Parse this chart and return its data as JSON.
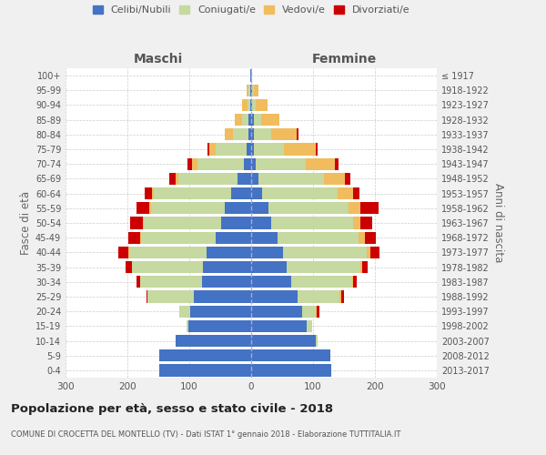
{
  "age_groups": [
    "0-4",
    "5-9",
    "10-14",
    "15-19",
    "20-24",
    "25-29",
    "30-34",
    "35-39",
    "40-44",
    "45-49",
    "50-54",
    "55-59",
    "60-64",
    "65-69",
    "70-74",
    "75-79",
    "80-84",
    "85-89",
    "90-94",
    "95-99",
    "100+"
  ],
  "birth_years": [
    "2013-2017",
    "2008-2012",
    "2003-2007",
    "1998-2002",
    "1993-1997",
    "1988-1992",
    "1983-1987",
    "1978-1982",
    "1973-1977",
    "1968-1972",
    "1963-1967",
    "1958-1962",
    "1953-1957",
    "1948-1952",
    "1943-1947",
    "1938-1942",
    "1933-1937",
    "1928-1932",
    "1923-1927",
    "1918-1922",
    "≤ 1917"
  ],
  "male_celibi": [
    148,
    148,
    122,
    102,
    98,
    92,
    80,
    78,
    72,
    58,
    48,
    42,
    32,
    22,
    12,
    8,
    5,
    4,
    2,
    2,
    1
  ],
  "male_coniugati": [
    0,
    0,
    0,
    2,
    18,
    75,
    100,
    115,
    125,
    120,
    125,
    120,
    125,
    95,
    75,
    50,
    25,
    10,
    4,
    2,
    0
  ],
  "male_vedovi": [
    0,
    0,
    0,
    0,
    0,
    0,
    0,
    0,
    2,
    2,
    2,
    2,
    3,
    5,
    8,
    10,
    12,
    12,
    8,
    4,
    0
  ],
  "male_divorziati": [
    0,
    0,
    0,
    0,
    0,
    2,
    5,
    10,
    15,
    18,
    20,
    22,
    12,
    10,
    8,
    2,
    0,
    0,
    0,
    0,
    0
  ],
  "female_celibi": [
    130,
    128,
    105,
    90,
    82,
    75,
    65,
    58,
    52,
    42,
    32,
    28,
    18,
    12,
    8,
    5,
    4,
    4,
    2,
    2,
    0
  ],
  "female_coniugati": [
    0,
    0,
    2,
    8,
    22,
    68,
    98,
    118,
    135,
    132,
    132,
    130,
    122,
    105,
    80,
    48,
    28,
    12,
    6,
    2,
    0
  ],
  "female_vedovi": [
    0,
    0,
    0,
    0,
    2,
    2,
    2,
    4,
    6,
    10,
    12,
    18,
    25,
    35,
    48,
    52,
    42,
    30,
    18,
    8,
    2
  ],
  "female_divorziati": [
    0,
    0,
    0,
    0,
    5,
    5,
    5,
    8,
    15,
    18,
    20,
    30,
    10,
    8,
    5,
    3,
    2,
    0,
    0,
    0,
    0
  ],
  "colors": {
    "celibi": "#4472c4",
    "coniugati": "#c5d9a0",
    "vedovi": "#f0bc5e",
    "divorziati": "#cc0000"
  },
  "title": "Popolazione per età, sesso e stato civile - 2018",
  "subtitle": "COMUNE DI CROCETTA DEL MONTELLO (TV) - Dati ISTAT 1° gennaio 2018 - Elaborazione TUTTITALIA.IT",
  "ylabel_left": "Fasce di età",
  "ylabel_right": "Anni di nascita",
  "xlabel_left": "Maschi",
  "xlabel_right": "Femmine",
  "xlim": 300,
  "background_color": "#f0f0f0",
  "plot_background": "#ffffff"
}
